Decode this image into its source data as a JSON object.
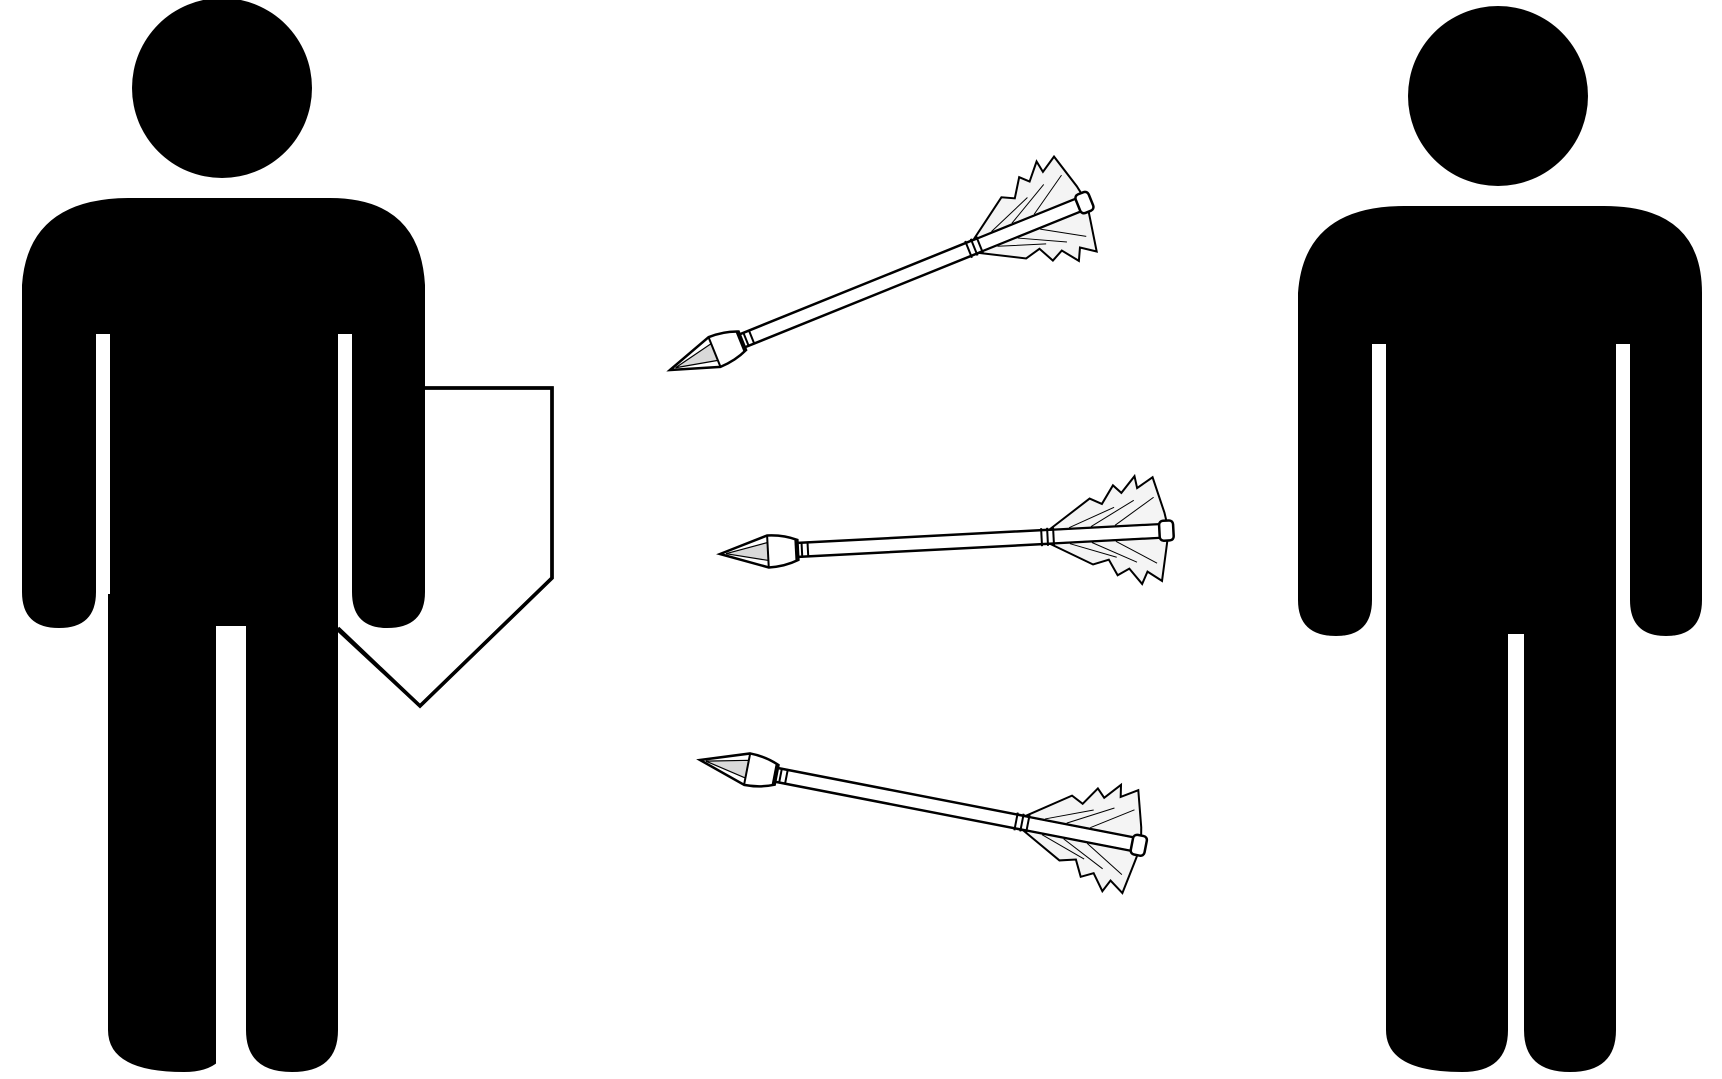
{
  "figures": [
    {
      "id": "left-person",
      "holds": "shield-icon",
      "role": "defender"
    },
    {
      "id": "right-person",
      "role": "archer"
    }
  ],
  "arrows": [
    {
      "id": "arrow-upper",
      "direction": "toward-left-person"
    },
    {
      "id": "arrow-middle",
      "direction": "toward-left-person"
    },
    {
      "id": "arrow-lower",
      "direction": "toward-left-person"
    }
  ],
  "colors": {
    "background": "#ffffff",
    "silhouette": "#000000",
    "outline": "#000000",
    "feather": "#f4f4f4",
    "shaft": "#ffffff"
  }
}
